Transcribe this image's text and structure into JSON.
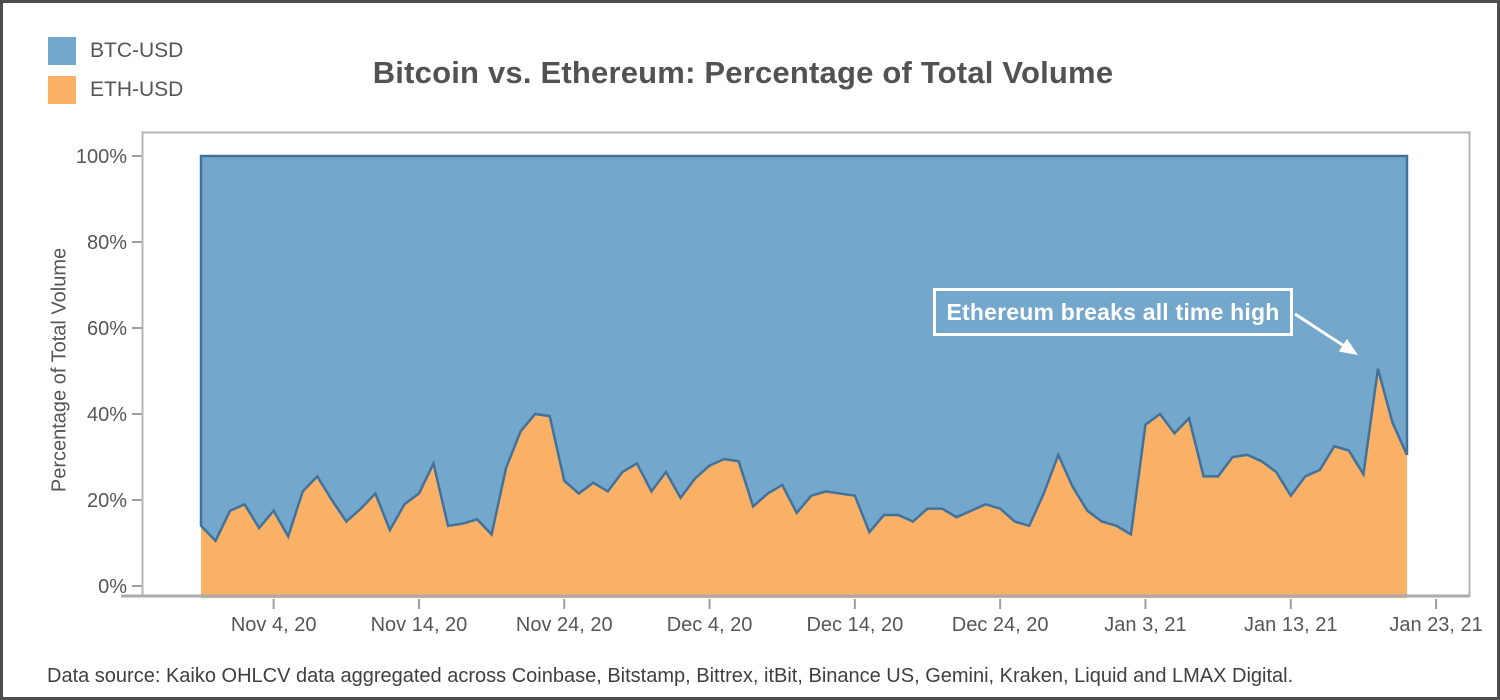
{
  "page": {
    "title": "Bitcoin vs. Ethereum: Percentage of Total Volume",
    "footer": "Data source: Kaiko OHLCV data aggregated across Coinbase, Bitstamp, Bittrex, itBit, Binance US, Gemini, Kraken, Liquid and LMAX Digital."
  },
  "legend": {
    "items": [
      {
        "label": "BTC-USD",
        "color": "#74a7cc"
      },
      {
        "label": "ETH-USD",
        "color": "#fbb165"
      }
    ]
  },
  "annotation": {
    "text": "Ethereum breaks all time high"
  },
  "chart_data": {
    "type": "area",
    "stacked": true,
    "title": "Bitcoin vs. Ethereum: Percentage of Total Volume",
    "xlabel": "",
    "ylabel": "Percentage of Total Volume",
    "ylim": [
      0,
      100
    ],
    "grid": false,
    "legend_position": "top-left",
    "y_tick_values": [
      0,
      20,
      40,
      60,
      80,
      100
    ],
    "y_tick_labels": [
      "0%",
      "20%",
      "40%",
      "60%",
      "80%",
      "100%"
    ],
    "x_frequency": "daily",
    "x_ticks": [
      {
        "label": "Nov 4, 20",
        "day_index": 5
      },
      {
        "label": "Nov 14, 20",
        "day_index": 15
      },
      {
        "label": "Nov 24, 20",
        "day_index": 25
      },
      {
        "label": "Dec 4, 20",
        "day_index": 35
      },
      {
        "label": "Dec 14, 20",
        "day_index": 45
      },
      {
        "label": "Dec 24, 20",
        "day_index": 55
      },
      {
        "label": "Jan 3, 21",
        "day_index": 65
      },
      {
        "label": "Jan 13, 21",
        "day_index": 75
      },
      {
        "label": "Jan 23, 21",
        "day_index": 85
      }
    ],
    "series": [
      {
        "name": "ETH-USD",
        "color": "#fbb165",
        "values_pct": [
          14,
          10.5,
          17.5,
          19,
          13.5,
          17.5,
          11.5,
          22,
          25.5,
          20,
          15,
          18,
          21.5,
          13,
          19,
          21.5,
          28.5,
          14,
          14.5,
          15.5,
          12,
          27.5,
          36,
          40,
          39.5,
          24.5,
          21.5,
          24,
          22,
          26.5,
          28.5,
          22,
          26.5,
          20.5,
          25,
          28,
          29.5,
          29,
          18.5,
          21.5,
          23.5,
          17,
          21,
          22,
          21.5,
          21,
          12.5,
          16.5,
          16.5,
          15,
          18,
          18,
          16,
          17.5,
          19,
          18,
          15,
          14,
          21.5,
          30.5,
          23,
          17.5,
          15,
          14,
          12,
          37.5,
          40,
          35.5,
          39,
          25.5,
          25.5,
          30,
          30.5,
          29,
          26.5,
          21,
          25.5,
          27,
          32.5,
          31.5,
          26,
          50.5,
          38,
          30.5
        ]
      },
      {
        "name": "BTC-USD",
        "color": "#74a7cc",
        "complement_to_100": true
      }
    ],
    "boundary_line_color": "#41729c",
    "annotation": {
      "text": "Ethereum breaks all time high",
      "target_day_index": 81,
      "target_value_pct": 50.5
    }
  }
}
